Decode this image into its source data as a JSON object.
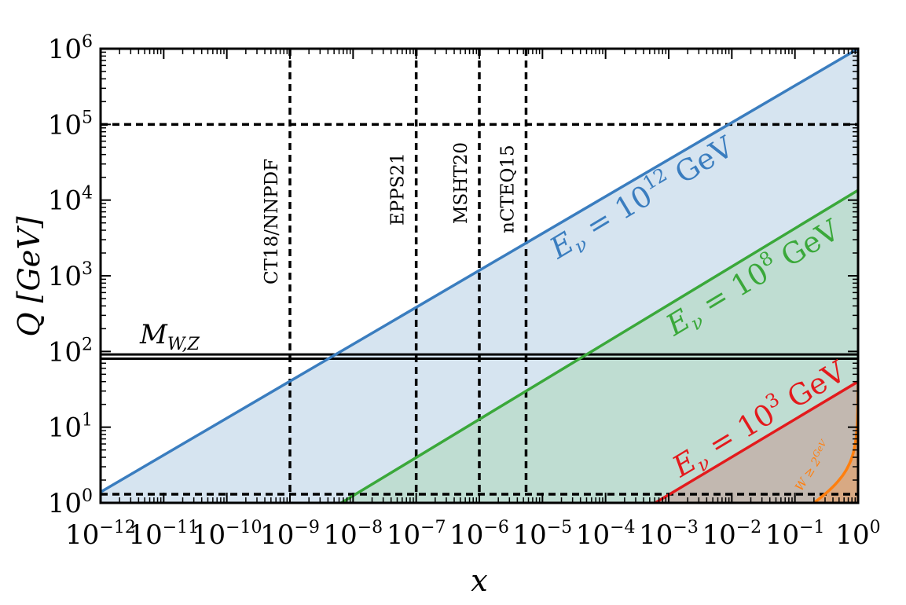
{
  "chart_data": {
    "type": "area",
    "xlabel": "x",
    "ylabel": "Q [GeV]",
    "xscale": "log",
    "yscale": "log",
    "xlim": [
      1e-12,
      1
    ],
    "ylim": [
      1,
      1000000
    ],
    "x_ticks": [
      {
        "base": "10",
        "exp": "−12",
        "value": 1e-12
      },
      {
        "base": "10",
        "exp": "−11",
        "value": 1e-11
      },
      {
        "base": "10",
        "exp": "−10",
        "value": 1e-10
      },
      {
        "base": "10",
        "exp": "−9",
        "value": 1e-09
      },
      {
        "base": "10",
        "exp": "−8",
        "value": 1e-08
      },
      {
        "base": "10",
        "exp": "−7",
        "value": 1e-07
      },
      {
        "base": "10",
        "exp": "−6",
        "value": 1e-06
      },
      {
        "base": "10",
        "exp": "−5",
        "value": 1e-05
      },
      {
        "base": "10",
        "exp": "−4",
        "value": 0.0001
      },
      {
        "base": "10",
        "exp": "−3",
        "value": 0.001
      },
      {
        "base": "10",
        "exp": "−2",
        "value": 0.01
      },
      {
        "base": "10",
        "exp": "−1",
        "value": 0.1
      },
      {
        "base": "10",
        "exp": "0",
        "value": 1
      }
    ],
    "y_ticks": [
      {
        "base": "10",
        "exp": "0",
        "value": 1
      },
      {
        "base": "10",
        "exp": "1",
        "value": 10
      },
      {
        "base": "10",
        "exp": "2",
        "value": 100
      },
      {
        "base": "10",
        "exp": "3",
        "value": 1000
      },
      {
        "base": "10",
        "exp": "4",
        "value": 10000
      },
      {
        "base": "10",
        "exp": "5",
        "value": 100000
      },
      {
        "base": "10",
        "exp": "6",
        "value": 1000000
      }
    ],
    "series": [
      {
        "name": "E_ν = 10^12 GeV",
        "label_text": "E",
        "label_sub": "ν",
        "label_mid": " = 10",
        "label_exp": "12",
        "label_unit": " GeV",
        "color": "#3a7dbf",
        "fill": "#d6e4f0",
        "x": [
          1e-12,
          1
        ],
        "y": [
          1.39,
          1000000
        ]
      },
      {
        "name": "E_ν = 10^8 GeV",
        "label_text": "E",
        "label_sub": "ν",
        "label_mid": " = 10",
        "label_exp": "8",
        "label_unit": " GeV",
        "color": "#3aa83a",
        "fill": "#bfddd2",
        "x": [
          6.5e-09,
          1
        ],
        "y": [
          1,
          13500
        ]
      },
      {
        "name": "E_ν = 10^3 GeV",
        "label_text": "E",
        "label_sub": "ν",
        "label_mid": " = 10",
        "label_exp": "3",
        "label_unit": " GeV",
        "color": "#e31a1c",
        "fill": "#c2b8b0",
        "x": [
          0.00061,
          1
        ],
        "y": [
          1,
          40
        ]
      }
    ],
    "w_boundary": {
      "label_main": "W ≥ 2",
      "label_sup": "GeV",
      "color": "#ff7f0e",
      "fill": "#d8a983"
    },
    "vertical_lines": [
      {
        "label": "CT18/NNPDF",
        "x": 1e-09
      },
      {
        "label": "EPPS21",
        "x": 1e-07
      },
      {
        "label": "MSHT20",
        "x": 1e-06
      },
      {
        "label": "nCTEQ15",
        "x": 5.5e-06
      }
    ],
    "horizontal_lines": [
      {
        "y": 100000,
        "style": "dashed"
      },
      {
        "y": 1.3,
        "style": "dashed"
      }
    ],
    "mass_lines": {
      "label_main": "M",
      "label_sub": "W,Z",
      "y": [
        80.4,
        91.2
      ]
    }
  }
}
